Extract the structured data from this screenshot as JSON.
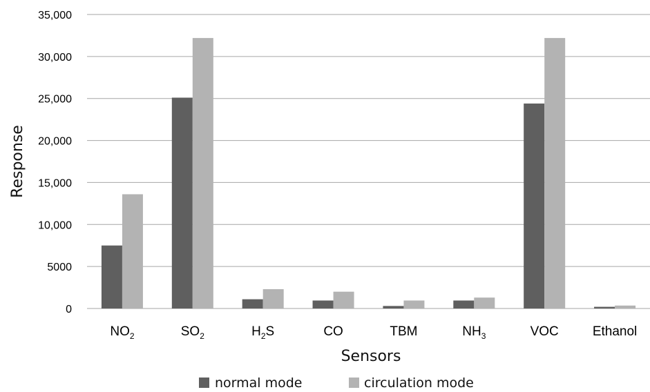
{
  "chart_data": {
    "type": "bar",
    "title": "",
    "xlabel": "Sensors",
    "ylabel": "Response",
    "ylim": [
      0,
      35000
    ],
    "yticks": [
      0,
      5000,
      10000,
      15000,
      20000,
      25000,
      30000,
      35000
    ],
    "ytick_labels": [
      "0",
      "5000",
      "10,000",
      "15,000",
      "20,000",
      "25,000",
      "30,000",
      "35,000"
    ],
    "grid": true,
    "legend_position": "bottom",
    "categories": [
      {
        "base": "NO",
        "sub": "2",
        "post": ""
      },
      {
        "base": "SO",
        "sub": "2",
        "post": ""
      },
      {
        "base": "H",
        "sub": "2",
        "post": "S"
      },
      {
        "base": "CO",
        "sub": "",
        "post": ""
      },
      {
        "base": "TBM",
        "sub": "",
        "post": ""
      },
      {
        "base": "NH",
        "sub": "3",
        "post": ""
      },
      {
        "base": "VOC",
        "sub": "",
        "post": ""
      },
      {
        "base": "Ethanol",
        "sub": "",
        "post": ""
      }
    ],
    "series": [
      {
        "name": "normal mode",
        "color": "#5f5f5f",
        "values": [
          7500,
          25100,
          1100,
          950,
          300,
          950,
          24400,
          200
        ]
      },
      {
        "name": "circulation mode",
        "color": "#b3b3b3",
        "values": [
          13600,
          32200,
          2300,
          2000,
          950,
          1300,
          32200,
          350
        ]
      }
    ],
    "grid_color": "#a6a6a6"
  }
}
